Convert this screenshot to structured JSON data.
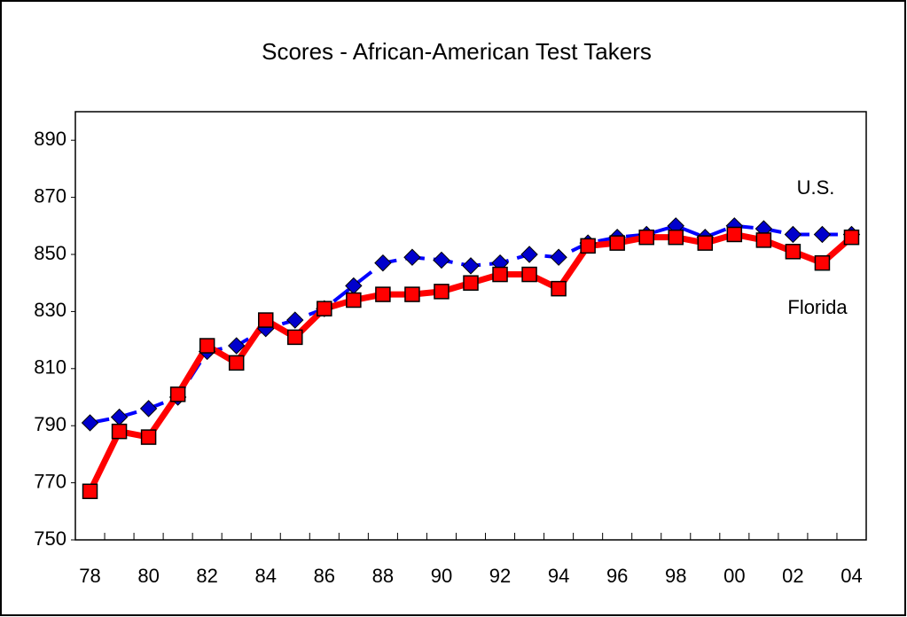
{
  "chart_data": {
    "type": "line",
    "title": "Scores - African-American Test Takers",
    "categories": [
      "78",
      null,
      "80",
      null,
      "82",
      null,
      "84",
      null,
      "86",
      null,
      "88",
      null,
      "90",
      null,
      "92",
      null,
      "94",
      null,
      "96",
      null,
      "98",
      null,
      "00",
      null,
      "02",
      null,
      "04"
    ],
    "series": [
      {
        "name": "U.S.",
        "color": "#0000ff",
        "marker_color": "#0000cc",
        "marker": "diamond",
        "dashed": true,
        "values": [
          791,
          793,
          796,
          800,
          816,
          818,
          824,
          827,
          831,
          839,
          847,
          849,
          848,
          846,
          847,
          850,
          849,
          854,
          856,
          857,
          860,
          856,
          860,
          859,
          857,
          857,
          857
        ]
      },
      {
        "name": "Florida",
        "color": "#ff0000",
        "marker_color": "#ff0000",
        "marker": "square",
        "dashed": false,
        "values": [
          767,
          788,
          786,
          801,
          818,
          812,
          827,
          821,
          831,
          834,
          836,
          836,
          837,
          840,
          843,
          843,
          838,
          853,
          854,
          856,
          856,
          854,
          857,
          855,
          851,
          847,
          856
        ]
      }
    ],
    "ylim": [
      750,
      900
    ],
    "yticks": [
      750,
      770,
      790,
      810,
      830,
      850,
      870,
      890
    ],
    "grid": false
  }
}
